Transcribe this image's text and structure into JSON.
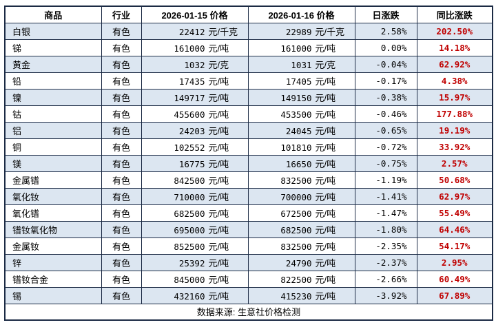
{
  "colors": {
    "band": "#dce6f1",
    "border": "#1b2a44",
    "yoy_red": "#c00000",
    "text": "#000000"
  },
  "chart_data": {
    "type": "table",
    "columns": [
      "商品",
      "行业",
      "2026-01-15 价格",
      "2026-01-16 价格",
      "日涨跌",
      "同比涨跌"
    ],
    "rows": [
      [
        "白银",
        "有色",
        "22412",
        "元/千克",
        "22989",
        "元/千克",
        "2.58%",
        "202.50%"
      ],
      [
        "锑",
        "有色",
        "161000",
        "元/吨",
        "161000",
        "元/吨",
        "0.00%",
        "14.18%"
      ],
      [
        "黄金",
        "有色",
        "1032",
        "元/克",
        "1031",
        "元/克",
        "-0.04%",
        "62.92%"
      ],
      [
        "铅",
        "有色",
        "17435",
        "元/吨",
        "17405",
        "元/吨",
        "-0.17%",
        "4.38%"
      ],
      [
        "镍",
        "有色",
        "149717",
        "元/吨",
        "149150",
        "元/吨",
        "-0.38%",
        "15.97%"
      ],
      [
        "钴",
        "有色",
        "455600",
        "元/吨",
        "453500",
        "元/吨",
        "-0.46%",
        "177.88%"
      ],
      [
        "铝",
        "有色",
        "24203",
        "元/吨",
        "24045",
        "元/吨",
        "-0.65%",
        "19.19%"
      ],
      [
        "铜",
        "有色",
        "102552",
        "元/吨",
        "101810",
        "元/吨",
        "-0.72%",
        "33.92%"
      ],
      [
        "镁",
        "有色",
        "16775",
        "元/吨",
        "16650",
        "元/吨",
        "-0.75%",
        "2.57%"
      ],
      [
        "金属镨",
        "有色",
        "842500",
        "元/吨",
        "832500",
        "元/吨",
        "-1.19%",
        "50.68%"
      ],
      [
        "氧化钕",
        "有色",
        "710000",
        "元/吨",
        "700000",
        "元/吨",
        "-1.41%",
        "62.97%"
      ],
      [
        "氧化镨",
        "有色",
        "682500",
        "元/吨",
        "672500",
        "元/吨",
        "-1.47%",
        "55.49%"
      ],
      [
        "镨钕氧化物",
        "有色",
        "695000",
        "元/吨",
        "682500",
        "元/吨",
        "-1.80%",
        "64.46%"
      ],
      [
        "金属钕",
        "有色",
        "852500",
        "元/吨",
        "832500",
        "元/吨",
        "-2.35%",
        "54.17%"
      ],
      [
        "锌",
        "有色",
        "25392",
        "元/吨",
        "24790",
        "元/吨",
        "-2.37%",
        "2.95%"
      ],
      [
        "镨钕合金",
        "有色",
        "845000",
        "元/吨",
        "822500",
        "元/吨",
        "-2.66%",
        "60.49%"
      ],
      [
        "锡",
        "有色",
        "432160",
        "元/吨",
        "415230",
        "元/吨",
        "-3.92%",
        "67.89%"
      ]
    ],
    "footer": "数据来源: 生意社价格检测"
  }
}
